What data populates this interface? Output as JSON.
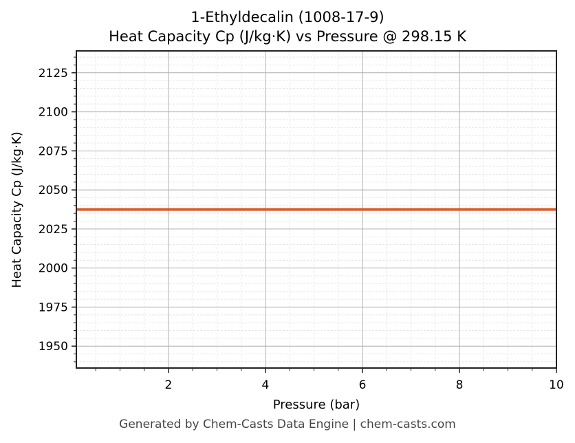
{
  "chart_data": {
    "type": "line",
    "title": "1-Ethyldecalin (1008-17-9)",
    "subtitle": "Heat Capacity Cp (J/kg·K) vs Pressure @ 298.15 K",
    "xlabel": "Pressure (bar)",
    "ylabel": "Heat Capacity Cp (J/kg·K)",
    "xlim": [
      0.1,
      10
    ],
    "ylim": [
      1936,
      2139
    ],
    "x_ticks": [
      2,
      4,
      6,
      8,
      10
    ],
    "x_tick_labels": [
      "2",
      "4",
      "6",
      "8",
      "10"
    ],
    "y_ticks": [
      1950,
      1975,
      2000,
      2025,
      2050,
      2075,
      2100,
      2125
    ],
    "y_tick_labels": [
      "1950",
      "1975",
      "2000",
      "2025",
      "2050",
      "2075",
      "2100",
      "2125"
    ],
    "x_minor_step": 0.5,
    "y_minor_step": 5,
    "grid": true,
    "legend": null,
    "series": [
      {
        "name": "Cp",
        "color": "#d95a27",
        "x": [
          0.1,
          1,
          2,
          3,
          4,
          5,
          6,
          7,
          8,
          9,
          10
        ],
        "values": [
          2037.5,
          2037.5,
          2037.5,
          2037.5,
          2037.5,
          2037.5,
          2037.5,
          2037.5,
          2037.5,
          2037.5,
          2037.5
        ]
      }
    ]
  },
  "footer": "Generated by Chem-Casts Data Engine | chem-casts.com",
  "colors": {
    "line": "#d95a27",
    "major_grid": "#b0b0b0",
    "minor_grid": "#e0e0e0",
    "axes": "#222222",
    "footer_text": "#444444"
  }
}
